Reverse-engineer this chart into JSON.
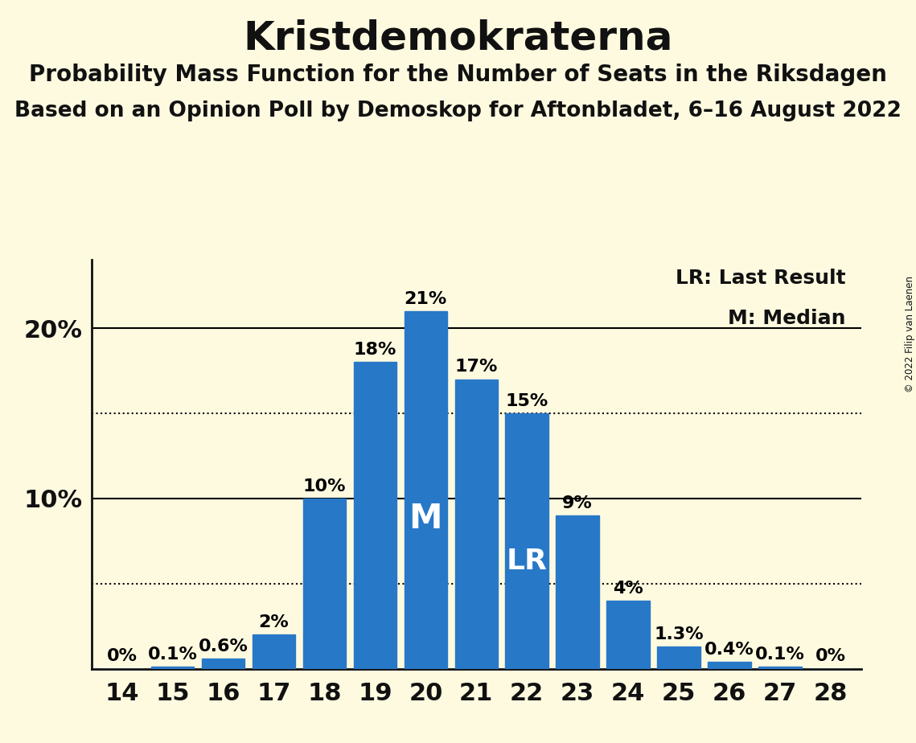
{
  "title": "Kristdemokraterna",
  "subtitle1": "Probability Mass Function for the Number of Seats in the Riksdagen",
  "subtitle2": "Based on an Opinion Poll by Demoskop for Aftonbladet, 6–16 August 2022",
  "copyright": "© 2022 Filip van Laenen",
  "seats": [
    14,
    15,
    16,
    17,
    18,
    19,
    20,
    21,
    22,
    23,
    24,
    25,
    26,
    27,
    28
  ],
  "probabilities": [
    0.0,
    0.1,
    0.6,
    2.0,
    10.0,
    18.0,
    21.0,
    17.0,
    15.0,
    9.0,
    4.0,
    1.3,
    0.4,
    0.1,
    0.0
  ],
  "bar_color": "#2878C8",
  "background_color": "#FEFAE0",
  "median_seat": 20,
  "lr_seat": 22,
  "dotted_line_1": 15.0,
  "dotted_line_2": 5.0,
  "ylim": [
    0,
    24
  ],
  "bar_label_fontsize": 16,
  "title_fontsize": 36,
  "subtitle_fontsize": 20,
  "tick_fontsize": 22,
  "axis_color": "#111111",
  "legend_fontsize": 18
}
